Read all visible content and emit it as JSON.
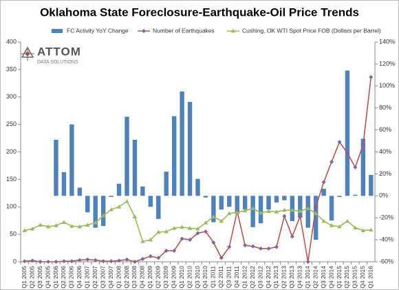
{
  "chart_data": {
    "type": "combo",
    "title": "Oklahoma State Foreclosure-Earthquake-Oil Price Trends",
    "logo": {
      "name": "ATTOM",
      "tagline": "DATA SOLUTIONS"
    },
    "categories": [
      "Q1 2005",
      "Q2 2005",
      "Q3 2005",
      "Q4 2005",
      "Q1 2006",
      "Q2 2006",
      "Q3 2006",
      "Q4 2006",
      "Q1 2007",
      "Q2 2007",
      "Q3 2007",
      "Q4 2007",
      "Q1 2008",
      "Q2 2008",
      "Q3 2008",
      "Q4 2008",
      "Q1 2009",
      "Q2 2009",
      "Q3 2009",
      "Q4 2009",
      "Q1 2010",
      "Q2 2010",
      "Q3 2010",
      "Q4 2010",
      "Q1 2011",
      "Q2 2011",
      "Q3 2011",
      "Q4 2011",
      "Q1 2012",
      "Q2 2012",
      "Q3 2012",
      "Q4 2012",
      "Q1 2013",
      "Q2 2013",
      "Q3 2013",
      "Q4 2013",
      "Q1 2014",
      "Q2 2014",
      "Q3 2014",
      "Q4 2014",
      "Q1 2015",
      "Q2 2015",
      "Q3 2015",
      "Q4 2015",
      "Q1 2016"
    ],
    "series": [
      {
        "name": "FC Activity YoY Change",
        "type": "bar",
        "axis": "y2",
        "color": "#4f81bd",
        "values": [
          null,
          null,
          null,
          null,
          51,
          21.5,
          65,
          7.5,
          -15,
          -29,
          -27.5,
          -1,
          11,
          72,
          51,
          8.5,
          -10,
          -21,
          22,
          72.5,
          95,
          85.5,
          15.5,
          -1.5,
          -24,
          -12.5,
          -10,
          -16.5,
          -12.5,
          -28.5,
          -25,
          -12.5,
          -6,
          -4,
          -23,
          -20,
          -29,
          -40,
          6.5,
          -22.5,
          -1,
          114,
          1,
          52,
          19
        ]
      },
      {
        "name": "Number of Earthquakes",
        "type": "line",
        "color": "#c0504d",
        "marker": "diamond",
        "marker_color": "#8064a2",
        "values": [
          1,
          2,
          0,
          0,
          0,
          1,
          1,
          3,
          4,
          3,
          1,
          1,
          2,
          4,
          0,
          5,
          10,
          7,
          20,
          20,
          42,
          40,
          52,
          55,
          35,
          7,
          27,
          92,
          30,
          28,
          24,
          24,
          27,
          83,
          46,
          83,
          0,
          100,
          145,
          182,
          218,
          198,
          172,
          213,
          336
        ]
      },
      {
        "name": "Cushing, OK WTI Spot Price FOB (Dollars per Barrel)",
        "type": "line",
        "color": "#9bbb59",
        "marker": "triangle",
        "marker_color": "#9bbb59",
        "values": [
          57,
          60,
          67,
          64,
          66,
          72,
          65,
          64,
          67,
          71,
          84,
          95,
          100,
          110,
          82,
          37,
          40,
          54,
          55,
          61,
          63,
          61,
          60,
          71,
          82,
          74,
          88,
          90,
          93,
          97,
          89,
          92,
          91,
          94,
          94,
          92,
          97,
          88,
          74,
          66,
          64,
          74,
          62,
          57,
          58
        ]
      }
    ],
    "ylim": [
      0,
      400
    ],
    "yticks": [
      0,
      50,
      100,
      150,
      200,
      250,
      300,
      350,
      400
    ],
    "y2lim": [
      -60,
      140
    ],
    "y2ticks": [
      {
        "value": -60,
        "label": "-60%"
      },
      {
        "value": -40,
        "label": "-40%"
      },
      {
        "value": -20,
        "label": "-20%"
      },
      {
        "value": 0,
        "label": "0%"
      },
      {
        "value": 20,
        "label": "20%"
      },
      {
        "value": 40,
        "label": "40%"
      },
      {
        "value": 60,
        "label": "60%"
      },
      {
        "value": 80,
        "label": "80%"
      },
      {
        "value": 100,
        "label": "100%"
      },
      {
        "value": 120,
        "label": "120%"
      },
      {
        "value": 140,
        "label": "140%"
      }
    ],
    "grid": false,
    "legend": "top"
  }
}
